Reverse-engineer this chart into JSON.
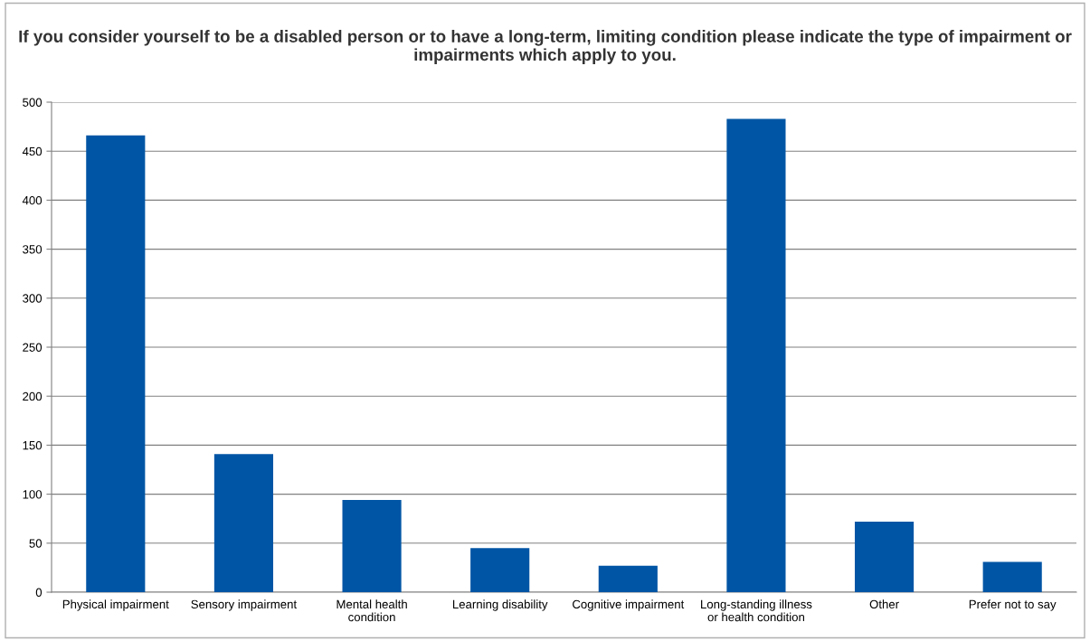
{
  "chart_data": {
    "type": "bar",
    "title": "If you consider yourself to be a disabled person or to have a long-term, limiting condition please indicate the type of impairment or impairments which apply to you.",
    "categories": [
      "Physical impairment",
      "Sensory impairment",
      "Mental health condition",
      "Learning disability",
      "Cognitive impairment",
      "Long-standing illness or health condition",
      "Other",
      "Prefer not to say"
    ],
    "values": [
      466,
      141,
      94,
      45,
      27,
      483,
      72,
      31
    ],
    "color": "#0055a5",
    "ylim": [
      0,
      500
    ],
    "yticks": [
      0,
      50,
      100,
      150,
      200,
      250,
      300,
      350,
      400,
      450,
      500
    ],
    "grid": "y"
  }
}
